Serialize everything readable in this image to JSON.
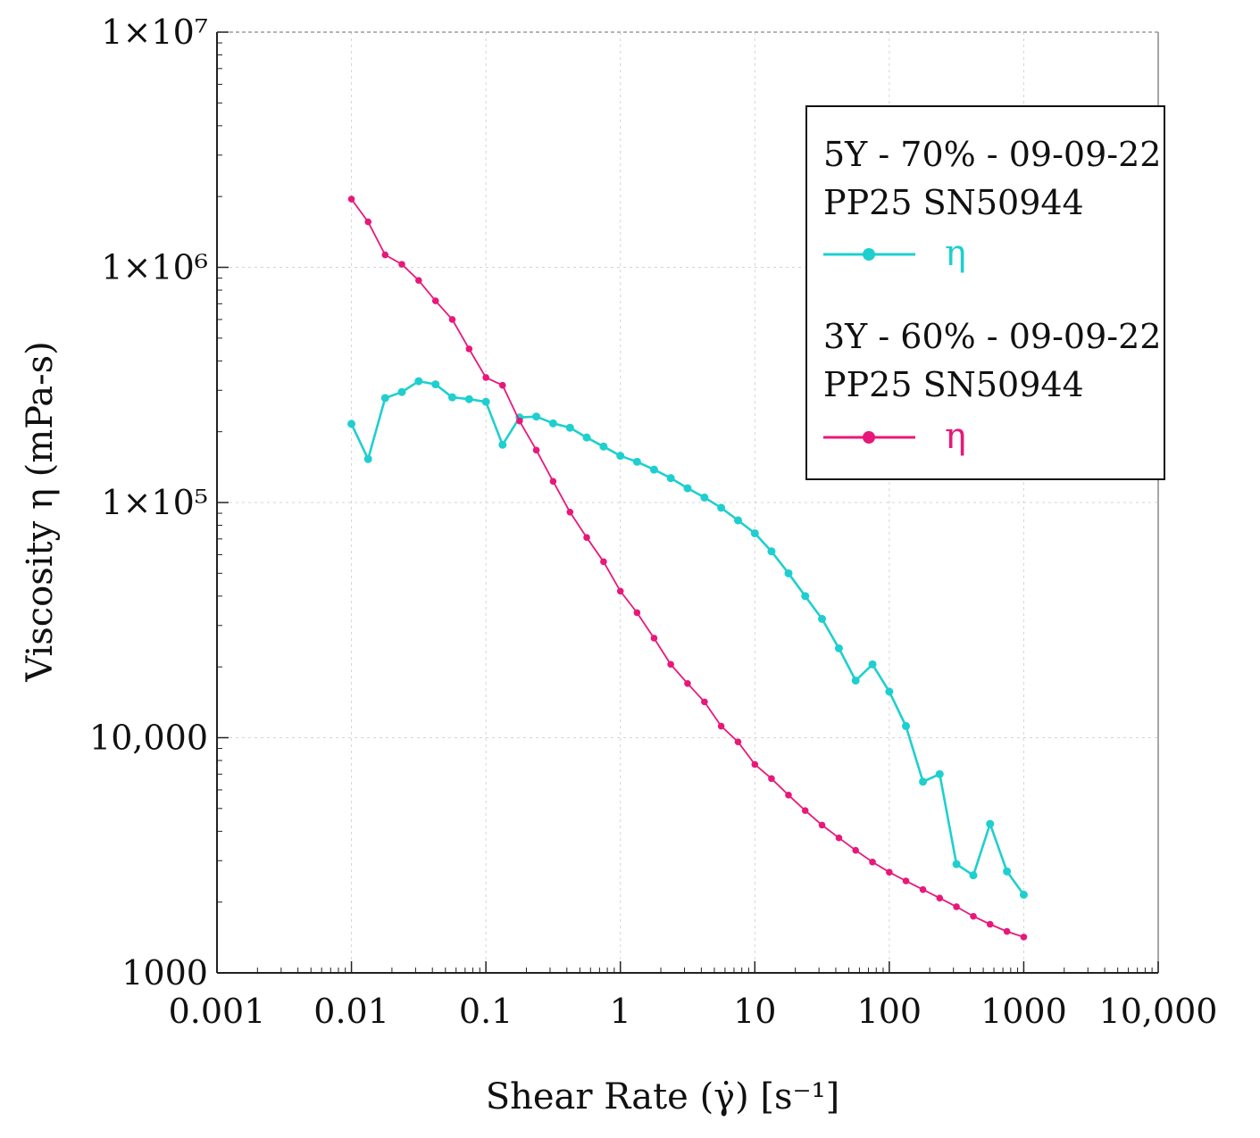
{
  "chart_data": {
    "type": "line",
    "xlabel": "Shear Rate (γ̇) [s⁻¹]",
    "ylabel": "Viscosity η (mPa-s)",
    "x_scale": "log",
    "y_scale": "log",
    "xlim": [
      0.001,
      10000
    ],
    "ylim": [
      1000,
      10000000
    ],
    "grid": true,
    "legend_position": "top-right",
    "x_ticks": [
      {
        "value": 0.001,
        "label": "0.001"
      },
      {
        "value": 0.01,
        "label": "0.01"
      },
      {
        "value": 0.1,
        "label": "0.1"
      },
      {
        "value": 1,
        "label": "1"
      },
      {
        "value": 10,
        "label": "10"
      },
      {
        "value": 100,
        "label": "100"
      },
      {
        "value": 1000,
        "label": "1000"
      },
      {
        "value": 10000,
        "label": "10,000"
      }
    ],
    "y_ticks": [
      {
        "value": 1000,
        "label": "1000"
      },
      {
        "value": 10000,
        "label": "10,000"
      },
      {
        "value": 100000,
        "label": "1×10⁵"
      },
      {
        "value": 1000000,
        "label": "1×10⁶"
      },
      {
        "value": 10000000,
        "label": "1×10⁷"
      }
    ],
    "series": [
      {
        "legend_line1": "5Y - 70% - 09-09-22",
        "legend_line2": "PP25 SN50944",
        "name": "η",
        "color": "#1fcfcf",
        "x": [
          0.01,
          0.0133,
          0.0178,
          0.0237,
          0.0316,
          0.0422,
          0.0562,
          0.075,
          0.1,
          0.133,
          0.178,
          0.237,
          0.316,
          0.422,
          0.562,
          0.75,
          1,
          1.33,
          1.78,
          2.37,
          3.16,
          4.22,
          5.62,
          7.5,
          10,
          13.3,
          17.8,
          23.7,
          31.6,
          42.2,
          56.2,
          75,
          100,
          133,
          178,
          237,
          316,
          422,
          562,
          750,
          1000
        ],
        "y": [
          216000,
          153000,
          278000,
          295000,
          328000,
          318000,
          280000,
          275000,
          268000,
          176000,
          230000,
          232000,
          217000,
          208000,
          189000,
          173000,
          158000,
          149000,
          138000,
          127000,
          115000,
          105000,
          95000,
          84000,
          74000,
          62000,
          50000,
          40000,
          32000,
          24000,
          17500,
          20500,
          15700,
          11200,
          6500,
          7000,
          2900,
          2600,
          4300,
          2700,
          2150
        ]
      },
      {
        "legend_line1": "3Y - 60% - 09-09-22",
        "legend_line2": "PP25 SN50944",
        "name": "η",
        "color": "#e8187a",
        "x": [
          0.01,
          0.0133,
          0.0178,
          0.0237,
          0.0316,
          0.0422,
          0.0562,
          0.075,
          0.1,
          0.133,
          0.178,
          0.237,
          0.316,
          0.422,
          0.562,
          0.75,
          1,
          1.33,
          1.78,
          2.37,
          3.16,
          4.22,
          5.62,
          7.5,
          10,
          13.3,
          17.8,
          23.7,
          31.6,
          42.2,
          56.2,
          75,
          100,
          133,
          178,
          237,
          316,
          422,
          562,
          750,
          1000
        ],
        "y": [
          1950000,
          1560000,
          1130000,
          1030000,
          880000,
          720000,
          600000,
          450000,
          340000,
          315000,
          222000,
          167000,
          123000,
          91000,
          71000,
          56000,
          42000,
          34000,
          26500,
          20500,
          17000,
          14200,
          11200,
          9600,
          7700,
          6700,
          5700,
          4900,
          4250,
          3750,
          3320,
          2960,
          2680,
          2460,
          2260,
          2080,
          1910,
          1740,
          1610,
          1500,
          1420
        ]
      }
    ]
  }
}
